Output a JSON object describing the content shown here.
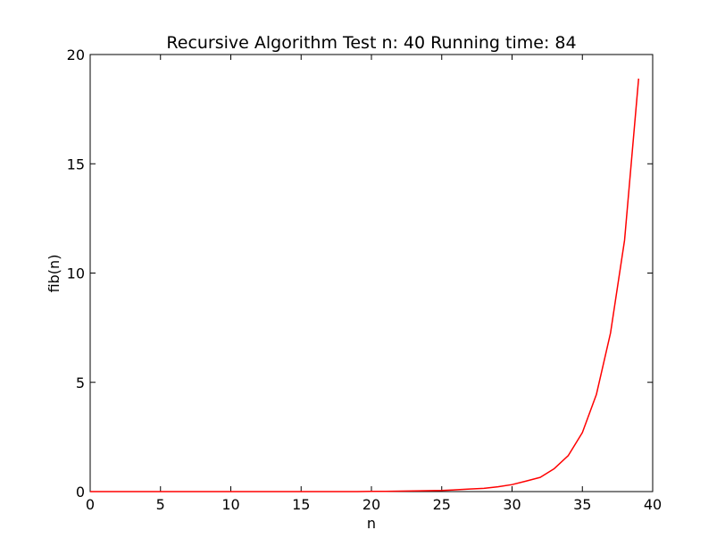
{
  "chart_data": {
    "type": "line",
    "title": "Recursive Algorithm Test n: 40 Running time: 84",
    "xlabel": "n",
    "ylabel": "fib(n)",
    "xlim": [
      0,
      40
    ],
    "ylim": [
      0,
      20
    ],
    "xticks": [
      0,
      5,
      10,
      15,
      20,
      25,
      30,
      35,
      40
    ],
    "yticks": [
      0,
      5,
      10,
      15,
      20
    ],
    "grid": false,
    "series": [
      {
        "color": "#ff0000",
        "x": [
          0,
          1,
          2,
          3,
          4,
          5,
          6,
          7,
          8,
          9,
          10,
          11,
          12,
          13,
          14,
          15,
          16,
          17,
          18,
          19,
          20,
          21,
          22,
          23,
          24,
          25,
          26,
          27,
          28,
          29,
          30,
          31,
          32,
          33,
          34,
          35,
          36,
          37,
          38,
          39
        ],
        "values": [
          0,
          0,
          0,
          0,
          0,
          0,
          0,
          0,
          0,
          0,
          0,
          0,
          0,
          0,
          0,
          0,
          0,
          0,
          0,
          0,
          0.01,
          0.01,
          0.02,
          0.03,
          0.04,
          0.05,
          0.08,
          0.12,
          0.15,
          0.22,
          0.32,
          0.48,
          0.65,
          1.05,
          1.65,
          2.7,
          4.45,
          7.25,
          11.5,
          18.9
        ]
      }
    ]
  }
}
